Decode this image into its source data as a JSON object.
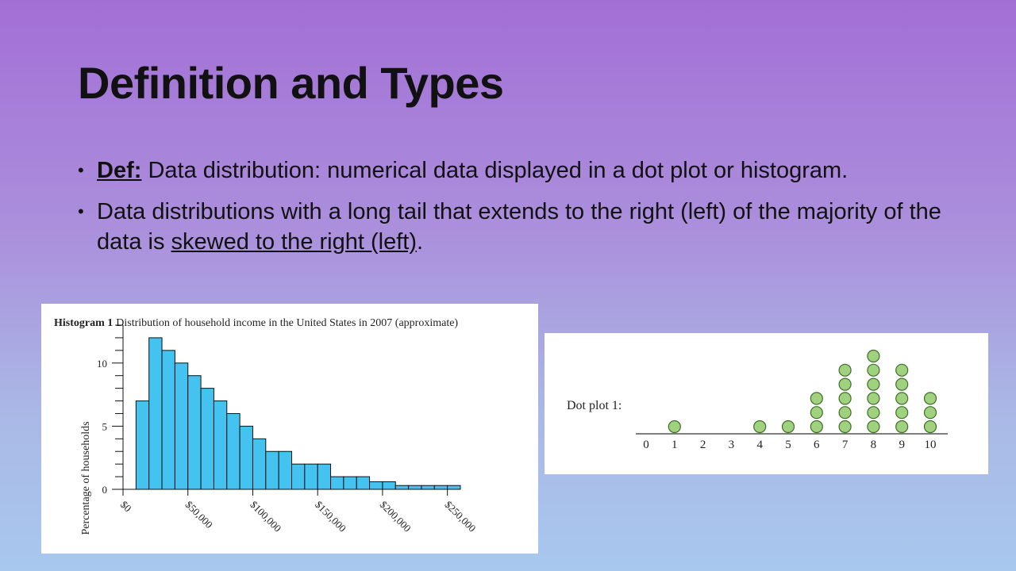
{
  "slide": {
    "title": "Definition and Types",
    "bullets": [
      {
        "term": "Def:",
        "text": " Data distribution: numerical data displayed in a dot plot or histogram."
      },
      {
        "text_before": "Data distributions with a long tail that extends to the right (left) of the majority of the data is ",
        "underlined": "skewed to the right (left)",
        "text_after": "."
      }
    ]
  },
  "colors": {
    "bar_fill": "#45c3f0",
    "dot_fill": "#9fd17e",
    "dot_stroke": "#3f6e2a"
  },
  "chart_data": [
    {
      "type": "bar",
      "title_bold": "Histogram 1",
      "title": "Distribution of household income in the United States in 2007 (approximate)",
      "ylabel": "Percentage of households",
      "xlabel": "",
      "bin_width": 10000,
      "bin_start": 10000,
      "values": [
        7,
        12,
        11,
        10,
        9,
        8,
        7,
        6,
        5,
        4,
        3,
        3,
        2,
        2,
        2,
        1,
        1,
        1,
        0.6,
        0.6,
        0.3,
        0.3,
        0.3,
        0.3,
        0.3
      ],
      "xlim": [
        0,
        260000
      ],
      "ylim": [
        0,
        13
      ],
      "y_tick_labels": [
        "0",
        "5",
        "10"
      ],
      "y_tick_values": [
        0,
        5,
        10
      ],
      "x_tick_labels": [
        "$0",
        "$50,000",
        "$100,000",
        "$150,000",
        "$200,000",
        "$250,000"
      ],
      "x_tick_values": [
        0,
        50000,
        100000,
        150000,
        200000,
        250000
      ]
    },
    {
      "type": "scatter",
      "title": "Dot plot 1:",
      "x_tick_labels": [
        "0",
        "1",
        "2",
        "3",
        "4",
        "5",
        "6",
        "7",
        "8",
        "9",
        "10"
      ],
      "x": [
        0,
        1,
        2,
        3,
        4,
        5,
        6,
        7,
        8,
        9,
        10
      ],
      "counts": [
        0,
        1,
        0,
        0,
        1,
        1,
        3,
        5,
        6,
        5,
        3
      ],
      "xlim": [
        0,
        10
      ]
    }
  ]
}
